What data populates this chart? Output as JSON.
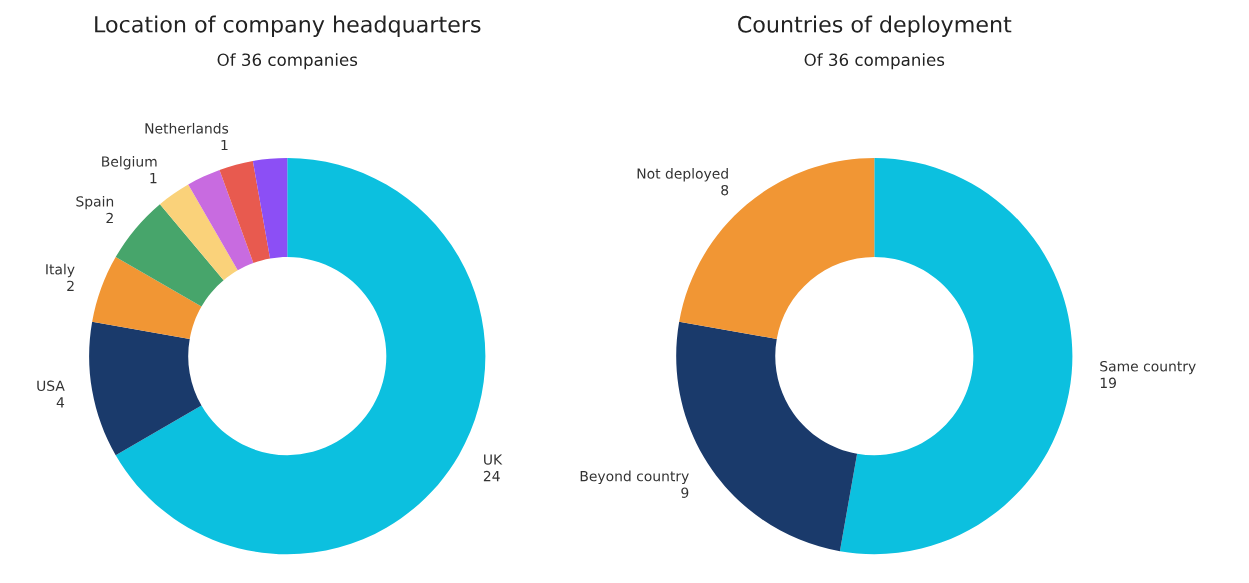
{
  "chart_data": [
    {
      "type": "donut",
      "title": "Location of company headquarters",
      "subtitle": "Of 36 companies",
      "categories": [
        "UK",
        "USA",
        "Italy",
        "Spain",
        "Belgium",
        null,
        "Netherlands",
        null
      ],
      "values": [
        24,
        4,
        2,
        2,
        1,
        1,
        1,
        1
      ],
      "value_labels": [
        "24",
        "4",
        "2",
        "2",
        "1",
        null,
        "1",
        null
      ],
      "colors": [
        "#0cc0df",
        "#1a3a6b",
        "#f19634",
        "#47a56b",
        "#fad27a",
        "#c86be0",
        "#e85a4f",
        "#8c4ff5"
      ]
    },
    {
      "type": "donut",
      "title": "Countries of deployment",
      "subtitle": "Of 36 companies",
      "categories": [
        "Same country",
        "Beyond country",
        "Not deployed"
      ],
      "values": [
        19,
        9,
        8
      ],
      "colors": [
        "#0cc0df",
        "#1a3a6b",
        "#f19634"
      ],
      "data_labels": true
    }
  ]
}
